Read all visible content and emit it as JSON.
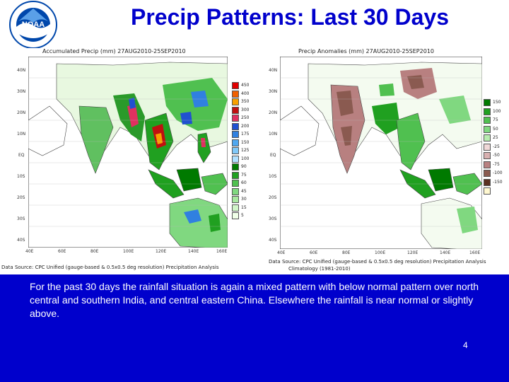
{
  "slide": {
    "title": "Precip Patterns: Last 30 Days",
    "caption": "For the past 30 days the rainfall situation is again a mixed pattern with below normal pattern over north central and southern India, and central eastern China. Elsewhere the rainfall is near normal or slightly above.",
    "page_number": "4"
  },
  "logo": {
    "name": "NOAA",
    "ring_text": "NATIONAL OCEANIC AND ATMOSPHERIC ADMINISTRATION",
    "color": "#0047ab"
  },
  "left_map": {
    "title": "Accumulated Precip (mm) 27AUG2010-25SEP2010",
    "lat_ticks": [
      "40N",
      "30N",
      "20N",
      "10N",
      "EQ",
      "10S",
      "20S",
      "30S",
      "40S"
    ],
    "lon_ticks": [
      "40E",
      "60E",
      "80E",
      "100E",
      "120E",
      "140E",
      "160E"
    ],
    "legend": [
      {
        "label": "450",
        "color": "#e00000"
      },
      {
        "label": "400",
        "color": "#f06000"
      },
      {
        "label": "350",
        "color": "#f8a000"
      },
      {
        "label": "300",
        "color": "#c01010"
      },
      {
        "label": "250",
        "color": "#e03060"
      },
      {
        "label": "200",
        "color": "#2050d0"
      },
      {
        "label": "175",
        "color": "#3080e0"
      },
      {
        "label": "150",
        "color": "#50a8f0"
      },
      {
        "label": "125",
        "color": "#80c8f8"
      },
      {
        "label": "100",
        "color": "#b0e0ff"
      },
      {
        "label": "90",
        "color": "#007a00"
      },
      {
        "label": "75",
        "color": "#20a020"
      },
      {
        "label": "60",
        "color": "#50c050"
      },
      {
        "label": "45",
        "color": "#80d880"
      },
      {
        "label": "30",
        "color": "#a8e8a0"
      },
      {
        "label": "15",
        "color": "#d0f5c8"
      },
      {
        "label": "5",
        "color": "#f0ffe8"
      }
    ],
    "source": "Data Source: CPC Unified (gauge-based & 0.5x0.5 deg resolution) Precipitation Analysis"
  },
  "right_map": {
    "title": "Precip Anomalies (mm) 27AUG2010-25SEP2010",
    "lat_ticks": [
      "40N",
      "30N",
      "20N",
      "10N",
      "EQ",
      "10S",
      "20S",
      "30S",
      "40S"
    ],
    "lon_ticks": [
      "40E",
      "60E",
      "80E",
      "100E",
      "120E",
      "140E",
      "160E"
    ],
    "legend": [
      {
        "label": "150",
        "color": "#007a00"
      },
      {
        "label": "100",
        "color": "#20a020"
      },
      {
        "label": "75",
        "color": "#50c050"
      },
      {
        "label": "50",
        "color": "#80d880"
      },
      {
        "label": "25",
        "color": "#b8ecb0"
      },
      {
        "label": "-25",
        "color": "#f0d8d8"
      },
      {
        "label": "-50",
        "color": "#d8b0b0"
      },
      {
        "label": "-75",
        "color": "#b88080"
      },
      {
        "label": "-100",
        "color": "#8a5a50"
      },
      {
        "label": "-150",
        "color": "#5a3020"
      },
      {
        "label": "",
        "color": "#fff8d0"
      }
    ],
    "source": "Data Source: CPC Unified (gauge-based & 0.5x0.5 deg resolution) Precipitation Analysis",
    "climatology": "Climatology (1981-2010)"
  }
}
